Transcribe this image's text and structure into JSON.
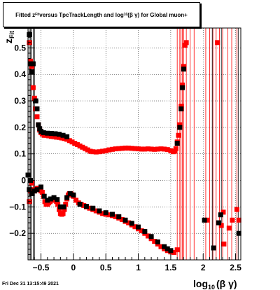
{
  "chart_data": {
    "type": "scatter",
    "title_parts": {
      "pre": "Fitted  z",
      "sub1": "Fit",
      "mid": "  versus TpcTrackLength and log",
      "sub2": "10",
      "post": "(β  γ) for Global muon+"
    },
    "xlabel_main": "log",
    "xlabel_sub": "10",
    "xlabel_tail": "(β γ)",
    "ylabel_main": "z",
    "ylabel_sub": "Fit",
    "xlim": [
      -0.7,
      2.58
    ],
    "ylim": [
      -0.3,
      0.575
    ],
    "x_ticks": [
      -0.5,
      0,
      0.5,
      1,
      1.5,
      2,
      2.5
    ],
    "x_tick_labels": [
      "−0.5",
      "0",
      "0.5",
      "1",
      "1.5",
      "2",
      "2.5"
    ],
    "y_ticks": [
      -0.2,
      -0.1,
      0,
      0.1,
      0.2,
      0.3,
      0.4,
      0.5
    ],
    "y_tick_labels": [
      "−0.2",
      "−0.1",
      "0",
      "0.1",
      "0.2",
      "0.3",
      "0.4",
      "0.5"
    ],
    "grid": true,
    "series": [
      {
        "color": "#ff0000",
        "marker": "square",
        "points": [
          [
            -0.68,
            0.52
          ],
          [
            -0.66,
            0.45
          ],
          [
            -0.64,
            0.43
          ],
          [
            -0.62,
            0.35
          ],
          [
            -0.6,
            0.31
          ],
          [
            -0.58,
            0.27
          ],
          [
            -0.56,
            0.24
          ],
          [
            -0.54,
            0.21
          ],
          [
            -0.52,
            0.19
          ],
          [
            -0.5,
            0.18
          ],
          [
            -0.48,
            0.175
          ],
          [
            -0.45,
            0.17
          ],
          [
            -0.42,
            0.17
          ],
          [
            -0.38,
            0.168
          ],
          [
            -0.34,
            0.166
          ],
          [
            -0.3,
            0.165
          ],
          [
            -0.26,
            0.163
          ],
          [
            -0.22,
            0.162
          ],
          [
            -0.18,
            0.16
          ],
          [
            -0.14,
            0.158
          ],
          [
            -0.1,
            0.155
          ],
          [
            -0.06,
            0.15
          ],
          [
            -0.02,
            0.145
          ],
          [
            0.02,
            0.14
          ],
          [
            0.06,
            0.135
          ],
          [
            0.1,
            0.13
          ],
          [
            0.14,
            0.125
          ],
          [
            0.18,
            0.12
          ],
          [
            0.22,
            0.115
          ],
          [
            0.26,
            0.11
          ],
          [
            0.3,
            0.108
          ],
          [
            0.35,
            0.107
          ],
          [
            0.4,
            0.108
          ],
          [
            0.45,
            0.11
          ],
          [
            0.5,
            0.112
          ],
          [
            0.55,
            0.115
          ],
          [
            0.6,
            0.117
          ],
          [
            0.65,
            0.119
          ],
          [
            0.7,
            0.12
          ],
          [
            0.75,
            0.121
          ],
          [
            0.8,
            0.122
          ],
          [
            0.85,
            0.122
          ],
          [
            0.9,
            0.121
          ],
          [
            0.95,
            0.12
          ],
          [
            1.0,
            0.119
          ],
          [
            1.05,
            0.118
          ],
          [
            1.1,
            0.118
          ],
          [
            1.15,
            0.119
          ],
          [
            1.2,
            0.118
          ],
          [
            1.25,
            0.117
          ],
          [
            1.3,
            0.118
          ],
          [
            1.35,
            0.119
          ],
          [
            1.4,
            0.118
          ],
          [
            1.45,
            0.116
          ],
          [
            1.5,
            0.112
          ],
          [
            1.54,
            0.108
          ],
          [
            1.56,
            0.11
          ],
          [
            1.58,
            0.12
          ],
          [
            1.6,
            0.145
          ],
          [
            1.62,
            0.17
          ],
          [
            1.64,
            0.21
          ],
          [
            1.66,
            0.28
          ],
          [
            1.68,
            0.36
          ],
          [
            1.7,
            0.43
          ],
          [
            1.72,
            0.51
          ],
          [
            1.74,
            0.52
          ],
          [
            -0.68,
            -0.08
          ],
          [
            -0.66,
            -0.04
          ],
          [
            -0.64,
            -0.01
          ],
          [
            -0.62,
            -0.035
          ],
          [
            -0.6,
            -0.04
          ],
          [
            -0.58,
            -0.035
          ],
          [
            -0.56,
            -0.03
          ],
          [
            -0.54,
            -0.03
          ],
          [
            -0.52,
            -0.035
          ],
          [
            -0.5,
            -0.04
          ],
          [
            -0.48,
            -0.045
          ],
          [
            -0.46,
            -0.06
          ],
          [
            -0.44,
            -0.08
          ],
          [
            -0.42,
            -0.09
          ],
          [
            -0.4,
            -0.09
          ],
          [
            -0.38,
            -0.085
          ],
          [
            -0.36,
            -0.08
          ],
          [
            -0.34,
            -0.075
          ],
          [
            -0.32,
            -0.072
          ],
          [
            -0.3,
            -0.072
          ],
          [
            -0.28,
            -0.075
          ],
          [
            -0.26,
            -0.08
          ],
          [
            -0.24,
            -0.09
          ],
          [
            -0.22,
            -0.11
          ],
          [
            -0.2,
            -0.125
          ],
          [
            -0.18,
            -0.128
          ],
          [
            -0.16,
            -0.125
          ],
          [
            -0.14,
            -0.11
          ],
          [
            -0.12,
            -0.09
          ],
          [
            -0.1,
            -0.07
          ],
          [
            -0.08,
            -0.055
          ],
          [
            -0.06,
            -0.05
          ],
          [
            -0.04,
            -0.05
          ],
          [
            -0.02,
            -0.055
          ],
          [
            0.0,
            -0.06
          ],
          [
            0.04,
            -0.075
          ],
          [
            0.08,
            -0.085
          ],
          [
            0.12,
            -0.09
          ],
          [
            0.16,
            -0.095
          ],
          [
            0.2,
            -0.1
          ],
          [
            0.25,
            -0.105
          ],
          [
            0.3,
            -0.11
          ],
          [
            0.35,
            -0.115
          ],
          [
            0.4,
            -0.12
          ],
          [
            0.45,
            -0.125
          ],
          [
            0.5,
            -0.128
          ],
          [
            0.55,
            -0.13
          ],
          [
            0.6,
            -0.133
          ],
          [
            0.65,
            -0.137
          ],
          [
            0.7,
            -0.142
          ],
          [
            0.75,
            -0.148
          ],
          [
            0.8,
            -0.155
          ],
          [
            0.85,
            -0.16
          ],
          [
            0.9,
            -0.168
          ],
          [
            0.95,
            -0.175
          ],
          [
            1.0,
            -0.183
          ],
          [
            1.05,
            -0.19
          ],
          [
            1.1,
            -0.2
          ],
          [
            1.15,
            -0.21
          ],
          [
            1.2,
            -0.22
          ],
          [
            1.25,
            -0.23
          ],
          [
            1.3,
            -0.24
          ],
          [
            1.35,
            -0.25
          ],
          [
            1.4,
            -0.258
          ],
          [
            1.45,
            -0.265
          ],
          [
            1.5,
            -0.27
          ],
          [
            1.55,
            -0.272
          ],
          [
            1.6,
            -0.262
          ],
          [
            2.06,
            -0.15
          ],
          [
            2.22,
            0.52
          ],
          [
            2.28,
            -0.17
          ],
          [
            2.31,
            -0.12
          ],
          [
            2.32,
            -0.24
          ],
          [
            2.4,
            -0.18
          ],
          [
            2.45,
            -0.15
          ],
          [
            2.52,
            -0.11
          ],
          [
            2.55,
            -0.15
          ]
        ]
      },
      {
        "color": "#000000",
        "marker": "square",
        "points": [
          [
            -0.68,
            0.55
          ],
          [
            -0.66,
            0.44
          ],
          [
            -0.64,
            0.41
          ],
          [
            -0.62,
            0.44
          ],
          [
            -0.58,
            0.3
          ],
          [
            -0.56,
            0.27
          ],
          [
            -0.54,
            0.21
          ],
          [
            -0.52,
            0.195
          ],
          [
            -0.5,
            0.185
          ],
          [
            -0.46,
            0.18
          ],
          [
            -0.4,
            0.178
          ],
          [
            -0.34,
            0.177
          ],
          [
            -0.28,
            0.176
          ],
          [
            -0.22,
            0.174
          ],
          [
            -0.16,
            0.17
          ],
          [
            -0.1,
            0.165
          ],
          [
            1.6,
            0.14
          ],
          [
            1.64,
            0.2
          ],
          [
            1.66,
            0.27
          ],
          [
            1.68,
            0.35
          ],
          [
            1.7,
            0.42
          ],
          [
            -0.7,
            0.02
          ],
          [
            -0.68,
            -0.035
          ],
          [
            -0.66,
            0.0
          ],
          [
            -0.64,
            -0.05
          ],
          [
            -0.6,
            -0.04
          ],
          [
            -0.56,
            -0.035
          ],
          [
            -0.5,
            -0.025
          ],
          [
            -0.45,
            -0.06
          ],
          [
            -0.4,
            -0.075
          ],
          [
            -0.35,
            -0.07
          ],
          [
            -0.3,
            -0.065
          ],
          [
            -0.25,
            -0.072
          ],
          [
            -0.2,
            -0.1
          ],
          [
            -0.15,
            -0.1
          ],
          [
            -0.1,
            -0.065
          ],
          [
            -0.05,
            -0.05
          ],
          [
            0.0,
            -0.055
          ],
          [
            0.1,
            -0.09
          ],
          [
            0.2,
            -0.098
          ],
          [
            0.3,
            -0.105
          ],
          [
            0.4,
            -0.115
          ],
          [
            0.5,
            -0.122
          ],
          [
            0.6,
            -0.128
          ],
          [
            0.7,
            -0.137
          ],
          [
            0.8,
            -0.15
          ],
          [
            0.9,
            -0.162
          ],
          [
            1.0,
            -0.176
          ],
          [
            1.1,
            -0.193
          ],
          [
            1.2,
            -0.212
          ],
          [
            1.3,
            -0.232
          ],
          [
            1.4,
            -0.25
          ],
          [
            1.45,
            -0.258
          ],
          [
            1.5,
            -0.265
          ],
          [
            2.02,
            -0.15
          ],
          [
            2.16,
            -0.255
          ],
          [
            2.24,
            -0.16
          ],
          [
            2.27,
            -0.13
          ],
          [
            2.55,
            -0.2
          ]
        ]
      }
    ],
    "red_error_bar_x": [
      1.6,
      1.64,
      1.66,
      1.68,
      1.7,
      1.74,
      1.8,
      1.86,
      2.04,
      2.1,
      2.15,
      2.2,
      2.25,
      2.3,
      2.38,
      2.44,
      2.52
    ],
    "black_error_bar_x": [
      -0.68,
      -0.66,
      -0.64,
      -0.62,
      -0.6,
      2.14,
      2.28,
      2.54
    ]
  },
  "footer": {
    "timestamp": "Fri Dec 31 13:15:49 2021"
  },
  "colors": {
    "red": "#ff0000",
    "black": "#000000",
    "grid": "#000000"
  }
}
